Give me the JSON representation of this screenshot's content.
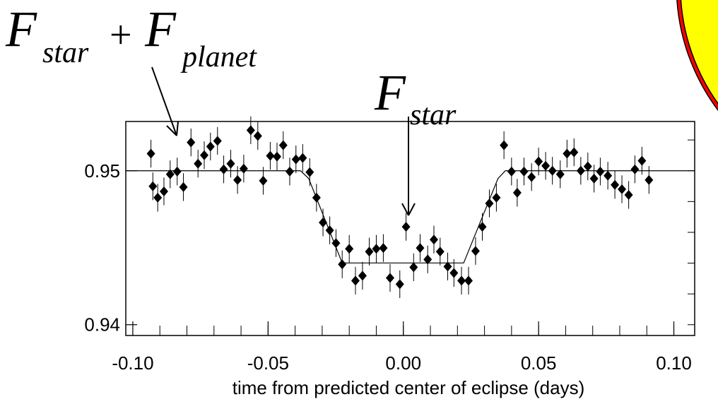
{
  "chart_data": {
    "type": "scatter",
    "xlabel": "time from predicted center of eclipse (days)",
    "annotations": [
      {
        "parts": [
          "F",
          "star",
          "+",
          "F",
          "planet"
        ]
      },
      {
        "parts": [
          "F",
          "star"
        ]
      }
    ],
    "xlim": [
      -0.1026,
      0.1077
    ],
    "ylim": [
      0.9393,
      0.9532
    ],
    "xticks": [
      {
        "value": -0.1,
        "label": "-0.10"
      },
      {
        "value": -0.05,
        "label": "-0.05"
      },
      {
        "value": 0,
        "label": "0.00"
      },
      {
        "value": 0.05,
        "label": "0.05"
      },
      {
        "value": 0.1,
        "label": "0.10"
      }
    ],
    "yticks": [
      0.94,
      0.95
    ],
    "xminorticks": [
      -0.1,
      -0.09,
      -0.08,
      -0.07,
      -0.06,
      -0.05,
      -0.04,
      -0.03,
      -0.02,
      -0.01,
      0,
      0.01,
      0.02,
      0.03,
      0.04,
      0.05,
      0.06,
      0.07,
      0.08,
      0.09,
      0.1
    ],
    "yminorticks": [
      0.94,
      0.942,
      0.944,
      0.946,
      0.948,
      0.95,
      0.952
    ],
    "series": [
      {
        "color": "#000000",
        "marker": "diamond",
        "yerr": 0.0009,
        "x": [
          -0.0926,
          -0.0933,
          -0.0908,
          -0.0885,
          -0.0862,
          -0.0836,
          -0.0813,
          -0.0785,
          -0.0759,
          -0.0736,
          -0.0713,
          -0.0687,
          -0.0664,
          -0.0638,
          -0.0613,
          -0.059,
          -0.0564,
          -0.0538,
          -0.0518,
          -0.0492,
          -0.0467,
          -0.0444,
          -0.042,
          -0.0397,
          -0.0372,
          -0.0346,
          -0.0321,
          -0.0297,
          -0.0272,
          -0.0249,
          -0.0226,
          -0.02,
          -0.0177,
          -0.0151,
          -0.0126,
          -0.01,
          -0.0074,
          -0.0049,
          -0.0013,
          0.001,
          0.0038,
          0.0062,
          0.009,
          0.0113,
          0.0136,
          0.0164,
          0.0187,
          0.0215,
          0.0241,
          0.0267,
          0.0292,
          0.0318,
          0.0344,
          0.0372,
          0.04,
          0.0421,
          0.0446,
          0.0474,
          0.05,
          0.0526,
          0.0551,
          0.058,
          0.0605,
          0.0631,
          0.0656,
          0.0682,
          0.0705,
          0.0728,
          0.0756,
          0.0782,
          0.0808,
          0.0833,
          0.0856,
          0.0882,
          0.0908
        ],
        "values": [
          0.94899,
          0.95111,
          0.94825,
          0.94866,
          0.94977,
          0.94995,
          0.94894,
          0.95184,
          0.95046,
          0.95101,
          0.95157,
          0.95194,
          0.95009,
          0.95046,
          0.9494,
          0.95014,
          0.95263,
          0.95226,
          0.94935,
          0.95097,
          0.95092,
          0.95166,
          0.94995,
          0.95074,
          0.95083,
          0.94991,
          0.94825,
          0.94664,
          0.94613,
          0.9453,
          0.94392,
          0.94493,
          0.94286,
          0.94318,
          0.94475,
          0.94493,
          0.94498,
          0.94304,
          0.94263,
          0.94636,
          0.94373,
          0.94498,
          0.94424,
          0.94553,
          0.94475,
          0.94378,
          0.94336,
          0.94286,
          0.94286,
          0.94479,
          0.94636,
          0.94788,
          0.94825,
          0.95166,
          0.94995,
          0.94857,
          0.94995,
          0.94959,
          0.9506,
          0.95032,
          0.95,
          0.94977,
          0.95111,
          0.9512,
          0.95,
          0.95028,
          0.94949,
          0.94995,
          0.94968,
          0.94908,
          0.9488,
          0.94843,
          0.95009,
          0.95065,
          0.9494
        ]
      },
      {
        "color": "#000000",
        "style": "line",
        "x": [
          -0.1026,
          -0.038,
          -0.035,
          -0.0226,
          0.0223,
          0.035,
          0.0377,
          0.1077
        ],
        "values": [
          0.95,
          0.95,
          0.9495,
          0.94401,
          0.94401,
          0.9495,
          0.95,
          0.95
        ]
      }
    ]
  }
}
